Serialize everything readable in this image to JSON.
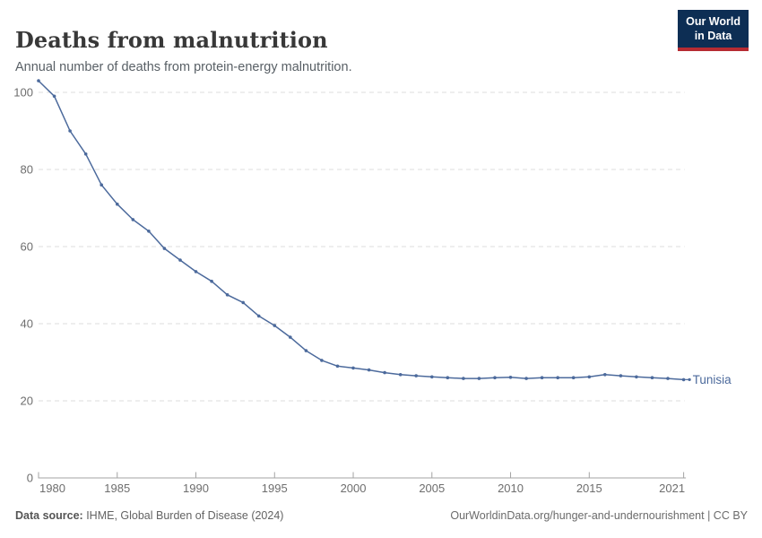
{
  "header": {
    "title": "Deaths from malnutrition",
    "subtitle": "Annual number of deaths from protein-energy malnutrition.",
    "logo": {
      "line1": "Our World",
      "line2": "in Data",
      "bg_color": "#0d2e54",
      "accent_color": "#b62b32"
    }
  },
  "footer": {
    "source_label": "Data source:",
    "source_value": " IHME, Global Burden of Disease (2024)",
    "link": "OurWorldinData.org/hunger-and-undernourishment | CC BY"
  },
  "chart_data": {
    "type": "line",
    "title": "Deaths from malnutrition",
    "subtitle": "Annual number of deaths from protein-energy malnutrition.",
    "xlabel": "",
    "ylabel": "",
    "xlim": [
      1980,
      2021
    ],
    "ylim": [
      0,
      100
    ],
    "x_ticks": [
      1980,
      1985,
      1990,
      1995,
      2000,
      2005,
      2010,
      2015,
      2021
    ],
    "y_ticks": [
      0,
      20,
      40,
      60,
      80,
      100
    ],
    "grid": "horizontal-dashed",
    "legend_position": "end-of-line-label",
    "grid_color": "#dcdcdc",
    "axis_color": "#a3a3a3",
    "tick_label_color": "#6e6e6e",
    "series": [
      {
        "name": "Tunisia",
        "color": "#4c6a9c",
        "x": [
          1980,
          1981,
          1982,
          1983,
          1984,
          1985,
          1986,
          1987,
          1988,
          1989,
          1990,
          1991,
          1992,
          1993,
          1994,
          1995,
          1996,
          1997,
          1998,
          1999,
          2000,
          2001,
          2002,
          2003,
          2004,
          2005,
          2006,
          2007,
          2008,
          2009,
          2010,
          2011,
          2012,
          2013,
          2014,
          2015,
          2016,
          2017,
          2018,
          2019,
          2020,
          2021
        ],
        "values": [
          103,
          99,
          90,
          84,
          76,
          71,
          67,
          64,
          59.5,
          56.5,
          53.5,
          51,
          47.5,
          45.5,
          42,
          39.5,
          36.5,
          33,
          30.5,
          29,
          28.5,
          28,
          27.3,
          26.8,
          26.5,
          26.2,
          26,
          25.8,
          25.8,
          26,
          26.1,
          25.8,
          26,
          26,
          26,
          26.2,
          26.8,
          26.5,
          26.2,
          26,
          25.8,
          25.5
        ]
      }
    ]
  }
}
